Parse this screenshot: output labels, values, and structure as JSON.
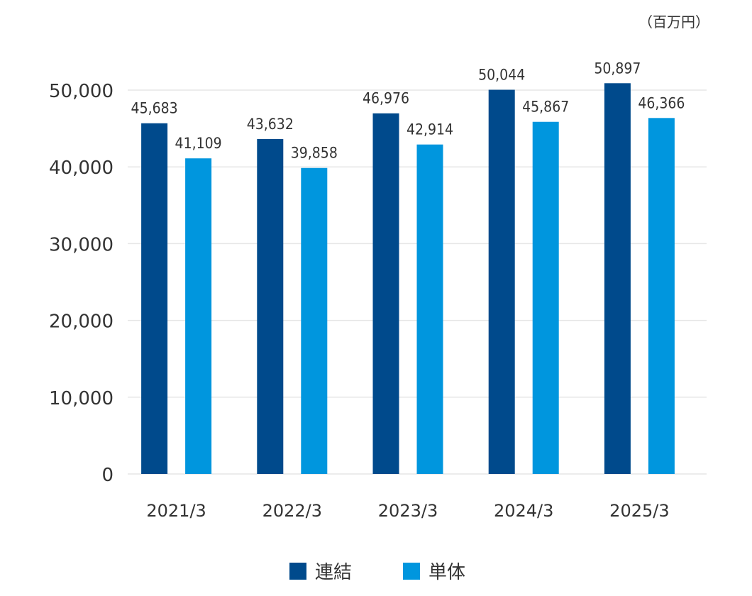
{
  "chart_data": {
    "type": "bar",
    "unit_label": "（百万円）",
    "categories": [
      "2021/3",
      "2022/3",
      "2023/3",
      "2024/3",
      "2025/3"
    ],
    "series": [
      {
        "name": "連結",
        "color": "#004a8c",
        "values": [
          45683,
          43632,
          46976,
          50044,
          50897
        ],
        "labels": [
          "45,683",
          "43,632",
          "46,976",
          "50,044",
          "50,897"
        ]
      },
      {
        "name": "単体",
        "color": "#0096de",
        "values": [
          41109,
          39858,
          42914,
          45867,
          46366
        ],
        "labels": [
          "41,109",
          "39,858",
          "42,914",
          "45,867",
          "46,366"
        ]
      }
    ],
    "ylim": [
      0,
      50000
    ],
    "yticks": [
      0,
      10000,
      20000,
      30000,
      40000,
      50000
    ],
    "ytick_labels": [
      "0",
      "10,000",
      "20,000",
      "30,000",
      "40,000",
      "50,000"
    ],
    "grid": true,
    "legend_position": "bottom-center"
  }
}
